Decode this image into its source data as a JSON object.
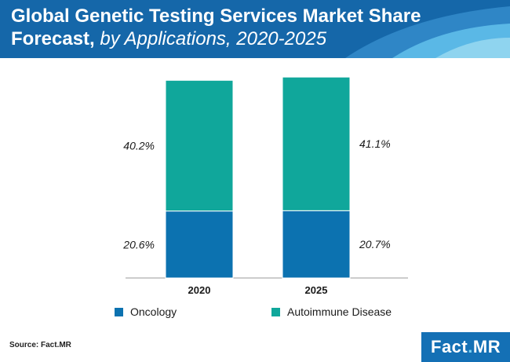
{
  "header": {
    "title_main": "Global Genetic Testing Services Market Share Forecast,",
    "title_sub": "by Applications, 2020-2025"
  },
  "colors": {
    "oncology": "#0c72b0",
    "autoimmune": "#10a79b",
    "banner_dark": "#1567a9",
    "banner_light": "#8fd4ef"
  },
  "chart_data": {
    "type": "bar",
    "stacked": true,
    "title": "Global Genetic Testing Services Market Share Forecast, by Applications, 2020-2025",
    "categories": [
      "2020",
      "2025"
    ],
    "series": [
      {
        "name": "Oncology",
        "values": [
          20.6,
          20.7
        ],
        "labels": [
          "20.6%",
          "20.7%"
        ]
      },
      {
        "name": "Autoimmune Disease",
        "values": [
          40.2,
          41.1
        ],
        "labels": [
          "40.2%",
          "41.1%"
        ]
      }
    ],
    "xlabel": "",
    "ylabel": "",
    "grid": false,
    "legend_position": "bottom"
  },
  "legend": {
    "oncology_label": "Oncology",
    "autoimmune_label": "Autoimmune Disease"
  },
  "footer": {
    "source": "Source: Fact.MR",
    "logo_main": "Fact",
    "logo_dot": ".",
    "logo_end": "MR"
  }
}
